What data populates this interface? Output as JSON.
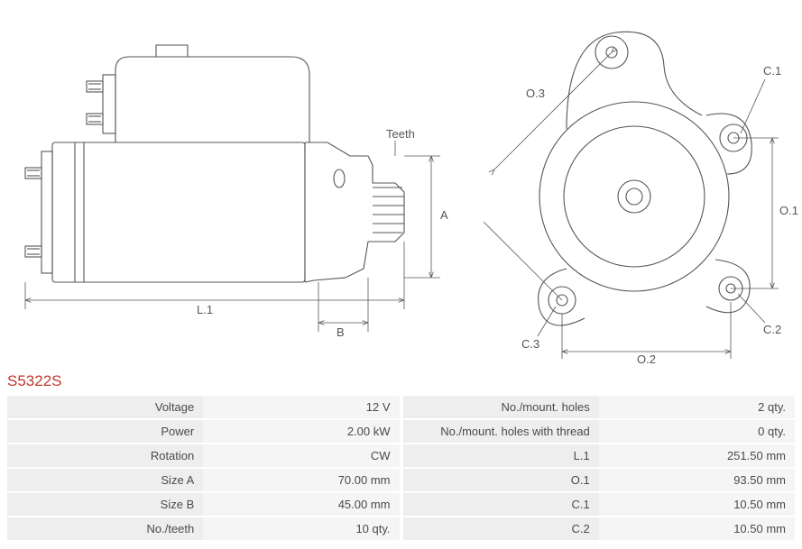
{
  "part_number": "S5322S",
  "diagram": {
    "stroke_color": "#555555",
    "stroke_width": 1.1,
    "thin_stroke_width": 0.8,
    "font_size": 13,
    "labels": {
      "L1": "L.1",
      "A": "A",
      "B": "B",
      "Teeth": "Teeth",
      "O1": "O.1",
      "O2": "O.2",
      "O3": "O.3",
      "C1": "C.1",
      "C2": "C.2",
      "C3": "C.3"
    }
  },
  "specs_left": [
    {
      "label": "Voltage",
      "value": "12 V"
    },
    {
      "label": "Power",
      "value": "2.00 kW"
    },
    {
      "label": "Rotation",
      "value": "CW"
    },
    {
      "label": "Size A",
      "value": "70.00 mm"
    },
    {
      "label": "Size B",
      "value": "45.00 mm"
    },
    {
      "label": "No./teeth",
      "value": "10 qty."
    }
  ],
  "specs_right": [
    {
      "label": "No./mount. holes",
      "value": "2 qty."
    },
    {
      "label": "No./mount. holes with thread",
      "value": "0 qty."
    },
    {
      "label": "L.1",
      "value": "251.50 mm"
    },
    {
      "label": "O.1",
      "value": "93.50 mm"
    },
    {
      "label": "C.1",
      "value": "10.50 mm"
    },
    {
      "label": "C.2",
      "value": "10.50 mm"
    }
  ],
  "table_style": {
    "row_bg": "#eeeeee",
    "val_bg": "#f5f5f5",
    "text_color": "#4a4a4a",
    "font_size": 13
  }
}
